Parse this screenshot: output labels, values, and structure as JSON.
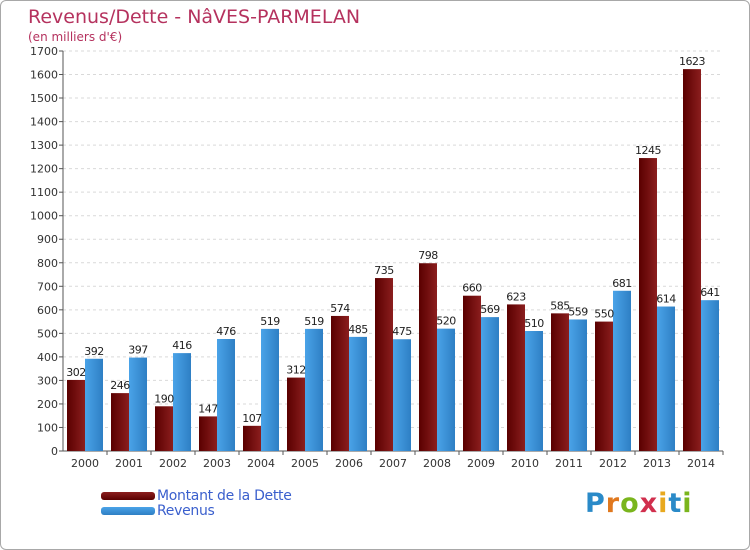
{
  "title": "Revenus/Dette - NâVES-PARMELAN",
  "subtitle": "(en milliers d'€)",
  "logo": {
    "letters": [
      "P",
      "r",
      "o",
      "x",
      "i",
      "t",
      "i"
    ],
    "colors": [
      "#2a8ac8",
      "#e0781e",
      "#7ab51d",
      "#d12f4d",
      "#e8a91f",
      "#2a8ac8",
      "#7ab51d"
    ]
  },
  "colors": {
    "debt": "#8b1e1e",
    "debt_dark": "#5a0000",
    "revenue": "#4aa3e8",
    "revenue_dark": "#2e7fc4",
    "title": "#b5325e",
    "legend_text": "#3a5fcd"
  },
  "chart_data": {
    "type": "bar",
    "title": "Revenus/Dette - NâVES-PARMELAN",
    "subtitle": "(en milliers d'€)",
    "categories": [
      "2000",
      "2001",
      "2002",
      "2003",
      "2004",
      "2005",
      "2006",
      "2007",
      "2008",
      "2009",
      "2010",
      "2011",
      "2012",
      "2013",
      "2014"
    ],
    "series": [
      {
        "name": "Montant de la Dette",
        "values": [
          302,
          246,
          190,
          147,
          107,
          312,
          574,
          735,
          798,
          660,
          623,
          585,
          550,
          1245,
          1623
        ]
      },
      {
        "name": "Revenus",
        "values": [
          392,
          397,
          416,
          476,
          519,
          519,
          485,
          475,
          520,
          569,
          510,
          559,
          681,
          614,
          641
        ]
      }
    ],
    "ylim": [
      0,
      1700
    ],
    "yticks": [
      "0",
      "100",
      "200",
      "300",
      "400",
      "500",
      "600",
      "700",
      "800",
      "900",
      "1000",
      "1100",
      "1200",
      "1300",
      "1400",
      "1500",
      "1600",
      "1700"
    ],
    "grid": true,
    "legend_position": "bottom-left"
  }
}
